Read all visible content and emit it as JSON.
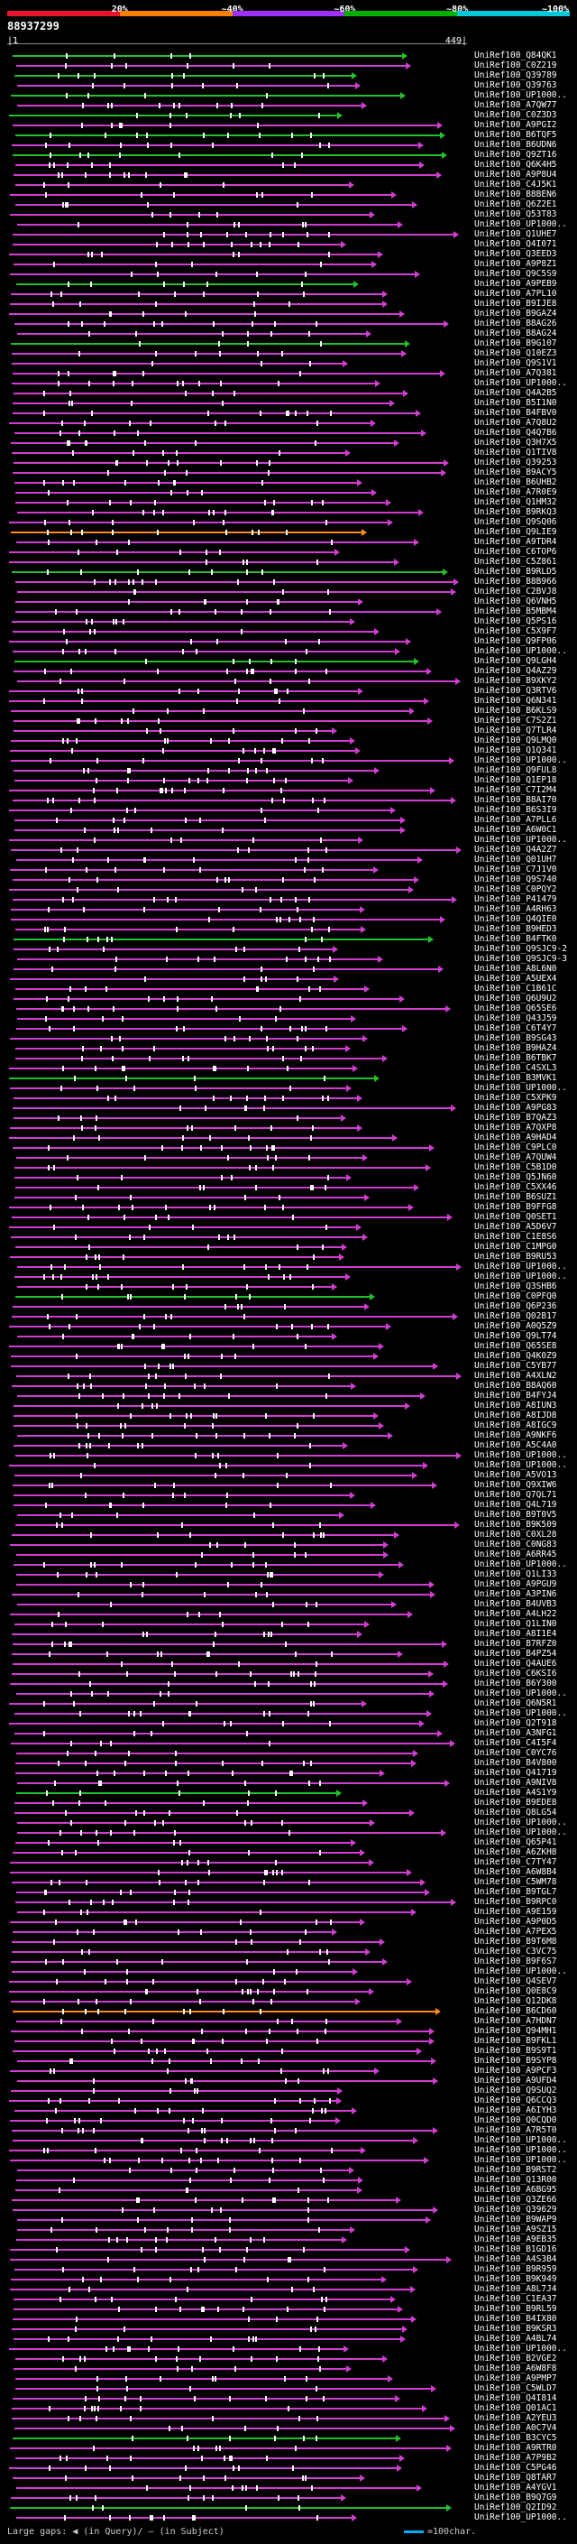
{
  "legend": {
    "ticks": [
      {
        "label": "20%",
        "color": "#e8152a",
        "from": 0,
        "to": 0.2
      },
      {
        "label": "~40%",
        "color": "#ff7f00",
        "from": 0.2,
        "to": 0.4
      },
      {
        "label": "~60%",
        "color": "#9b30ff",
        "from": 0.4,
        "to": 0.6
      },
      {
        "label": "~80%",
        "color": "#00b000",
        "from": 0.6,
        "to": 0.8
      },
      {
        "label": "~100%",
        "color": "#00c8d8",
        "from": 0.8,
        "to": 1.0
      }
    ]
  },
  "query": {
    "id": "88937299",
    "scale_start": "|1",
    "scale_end": "449|"
  },
  "hits": [
    "UniRef100_Q84QK1",
    "UniRef100_C0Z219",
    "UniRef100_Q39789",
    "UniRef100_Q39763",
    "UniRef100_UP1000..",
    "UniRef100_A7QW77",
    "UniRef100_C0Z3D3",
    "UniRef100_A9PGI2",
    "UniRef100_B6TQF5",
    "UniRef100_B6UDN6",
    "UniRef100_Q9ZT16",
    "UniRef100_Q6K4H5",
    "UniRef100_A9P8U4",
    "UniRef100_C4J5K1",
    "UniRef100_B8BEN6",
    "UniRef100_Q6Z2E1",
    "UniRef100_Q53T83",
    "UniRef100_UP1000..",
    "UniRef100_Q1UHE7",
    "UniRef100_Q4I071",
    "UniRef100_Q3EED3",
    "UniRef100_A9P8Z1",
    "UniRef100_Q9C5S9",
    "UniRef100_A9PEB9",
    "UniRef100_A7PL10",
    "UniRef100_B9IJE8",
    "UniRef100_B9GAZ4",
    "UniRef100_B8AG26",
    "UniRef100_B8AG24",
    "UniRef100_B9G107",
    "UniRef100_Q10EZ3",
    "UniRef100_Q9S1V1",
    "UniRef100_A7Q381",
    "UniRef100_UP1000..",
    "UniRef100_Q4A2B5",
    "UniRef100_B5I1N0",
    "UniRef100_B4FBV0",
    "UniRef100_A7Q8U2",
    "UniRef100_Q4Q7B6",
    "UniRef100_Q3H7X5",
    "UniRef100_Q1TIV8",
    "UniRef100_Q39253",
    "UniRef100_B9ACY5",
    "UniRef100_B6UHB2",
    "UniRef100_A7R0E9",
    "UniRef100_Q1HM32",
    "UniRef100_B9RKQ3",
    "UniRef100_Q9SQ06",
    "UniRef100_Q9LIE9",
    "UniRef100_A9TDR4",
    "UniRef100_C6TOP6",
    "UniRef100_C5Z861",
    "UniRef100_B9RLD5",
    "UniRef100_B8B966",
    "UniRef100_C2BVJ8",
    "UniRef100_Q6VNH5",
    "UniRef100_B5MBM4",
    "UniRef100_Q5PS16",
    "UniRef100_C5X9F7",
    "UniRef100_Q9FP06",
    "UniRef100_UP1000..",
    "UniRef100_Q9LGH4",
    "UniRef100_Q4AZ29",
    "UniRef100_B9XKY2",
    "UniRef100_Q3RTV6",
    "UniRef100_Q6N341",
    "UniRef100_B6KLS9",
    "UniRef100_C7S2Z1",
    "UniRef100_Q7TLR4",
    "UniRef100_Q9LMQ0",
    "UniRef100_Q1Q341",
    "UniRef100_UP1000..",
    "UniRef100_Q9FUL8",
    "UniRef100_Q1EP18",
    "UniRef100_C7I2M4",
    "UniRef100_B8AI70",
    "UniRef100_B6S3I9",
    "UniRef100_A7PLL6",
    "UniRef100_A6W0C1",
    "UniRef100_UP1000..",
    "UniRef100_Q4A2Z7",
    "UniRef100_Q01UH7",
    "UniRef100_C7J1V0",
    "UniRef100_Q9S740",
    "UniRef100_C0PQY2",
    "UniRef100_P41479",
    "UniRef100_A4RH63",
    "UniRef100_Q4QIE0",
    "UniRef100_B9HED3",
    "UniRef100_B4FTK0",
    "UniRef100_Q9SJC9-2",
    "UniRef100_Q9SJC9-3",
    "UniRef100_A8L6N0",
    "UniRef100_A5UEX4",
    "UniRef100_C1B61C",
    "UniRef100_Q6U9U2",
    "UniRef100_Q65SE6",
    "UniRef100_Q43J59",
    "UniRef100_C6T4Y7",
    "UniRef100_B9SG43",
    "UniRef100_B9HAZ4",
    "UniRef100_B6TBK7",
    "UniRef100_C4SXL3",
    "UniRef100_B3MVK1",
    "UniRef100_UP1000..",
    "UniRef100_C5XPK9",
    "UniRef100_A9PG83",
    "UniRef100_B7QAZ3",
    "UniRef100_A7QXP8",
    "UniRef100_A9HAD4",
    "UniRef100_C9PLC0",
    "UniRef100_A7QUW4",
    "UniRef100_C5B1D0",
    "UniRef100_Q5JN60",
    "UniRef100_C5XX46",
    "UniRef100_B6SUZ1",
    "UniRef100_B9FFG8",
    "UniRef100_Q0SET1",
    "UniRef100_A5D6V7",
    "UniRef100_C1E8S6",
    "UniRef100_C1MPG0",
    "UniRef100_B9RU53",
    "UniRef100_UP1000..",
    "UniRef100_UP1000..",
    "UniRef100_Q3SHB6",
    "UniRef100_C0PFQ0",
    "UniRef100_Q6P236",
    "UniRef100_Q02B17",
    "UniRef100_A0Q5Z9",
    "UniRef100_Q9LT74",
    "UniRef100_Q65SE8",
    "UniRef100_Q4K0Z9",
    "UniRef100_C5YB77",
    "UniRef100_A4XLN2",
    "UniRef100_B8AQ60",
    "UniRef100_B4FYJ4",
    "UniRef100_A8IUN3",
    "UniRef100_A8IJD8",
    "UniRef100_A8IGC9",
    "UniRef100_A9NKF6",
    "UniRef100_A5C4A0",
    "UniRef100_UP1000..",
    "UniRef100_UP1000..",
    "UniRef100_A5VO13",
    "UniRef100_Q9XIW6",
    "UniRef100_Q7QL71",
    "UniRef100_Q4L719",
    "UniRef100_B9T0V5",
    "UniRef100_B9K509",
    "UniRef100_C0XL28",
    "UniRef100_C0NG83",
    "UniRef100_A6RR45",
    "UniRef100_UP1000..",
    "UniRef100_Q1LI33",
    "UniRef100_A9PGU9",
    "UniRef100_A3PIN6",
    "UniRef100_B4UVB3",
    "UniRef100_A4LH22",
    "UniRef100_Q1LIN0",
    "UniRef100_A8I1E4",
    "UniRef100_B7RFZ0",
    "UniRef100_B4PZ54",
    "UniRef100_Q4AUE6",
    "UniRef100_C6KSI6",
    "UniRef100_B6Y300",
    "UniRef100_UP1000..",
    "UniRef100_Q6N5R1",
    "UniRef100_UP1000..",
    "UniRef100_Q2T918",
    "UniRef100_A3NFG1",
    "UniRef100_C4I5F4",
    "UniRef100_C0YC76",
    "UniRef100_B4V800",
    "UniRef100_Q41719",
    "UniRef100_A9NIV8",
    "UniRef100_A4S1Y9",
    "UniRef100_B9EDE8",
    "UniRef100_Q8LG54",
    "UniRef100_UP1000..",
    "UniRef100_UP1000..",
    "UniRef100_Q65P41",
    "UniRef100_A6ZKH8",
    "UniRef100_C7TY47",
    "UniRef100_A6W8B4",
    "UniRef100_C5WM78",
    "UniRef100_B9TGL7",
    "UniRef100_B9RPC0",
    "UniRef100_A9E159",
    "UniRef100_A9P0D5",
    "UniRef100_A7PEX5",
    "UniRef100_B9T6M8",
    "UniRef100_C3VC75",
    "UniRef100_B9F6S7",
    "UniRef100_UP1000..",
    "UniRef100_Q4SEV7",
    "UniRef100_Q0E8C9",
    "UniRef100_Q12DK8",
    "UniRef100_B6CD60",
    "UniRef100_A7HDN7",
    "UniRef100_Q94MH1",
    "UniRef100_B9FKL1",
    "UniRef100_B9S9T1",
    "UniRef100_B9SYP8",
    "UniRef100_A9PCF3",
    "UniRef100_A9UFD4",
    "UniRef100_Q9SUQ2",
    "UniRef100_Q6CCQ3",
    "UniRef100_A6IYH3",
    "UniRef100_Q0CQD0",
    "UniRef100_A7R5T0",
    "UniRef100_UP1000..",
    "UniRef100_UP1000..",
    "UniRef100_UP1000..",
    "UniRef100_B9RST2",
    "UniRef100_Q13R00",
    "UniRef100_A6BG95",
    "UniRef100_Q3ZE66",
    "UniRef100_Q39629",
    "UniRef100_B9WAP9",
    "UniRef100_A9SZ15",
    "UniRef100_A9EB35",
    "UniRef100_B1GD16",
    "UniRef100_A4S3B4",
    "UniRef100_B9R959",
    "UniRef100_B9K949",
    "UniRef100_A8L7J4",
    "UniRef100_C1EA37",
    "UniRef100_B9RL59",
    "UniRef100_B4IX80",
    "UniRef100_B9KSR3",
    "UniRef100_A4BL74",
    "UniRef100_UP1000..",
    "UniRef100_B2VGE2",
    "UniRef100_A6W8F8",
    "UniRef100_A9PMP7",
    "UniRef100_C5WLD7",
    "UniRef100_Q4I814",
    "UniRef100_Q01AC1",
    "UniRef100_A2YEU3",
    "UniRef100_A0C7V4",
    "UniRef100_B3CYC5",
    "UniRef100_A9RTR0",
    "UniRef100_A7P9B2",
    "UniRef100_C5PG46",
    "UniRef100_Q8TAR7",
    "UniRef100_A4YGV1",
    "UniRef100_B9Q7G9",
    "UniRef100_Q2ID92",
    "UniRef100_UP1000.."
  ],
  "footer": {
    "left": "Large gaps: ◀ (in Query)/ — (in Subject)",
    "right": "=100char."
  }
}
